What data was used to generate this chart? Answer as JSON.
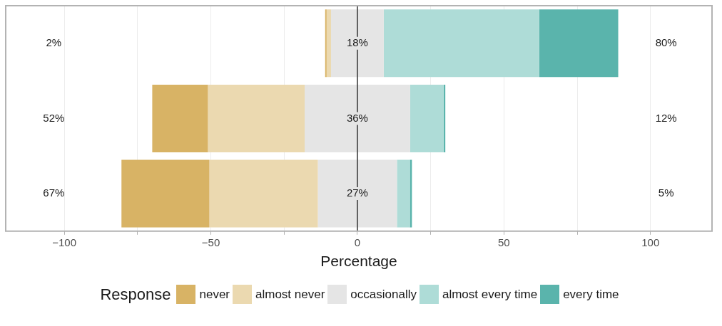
{
  "chart_data": {
    "type": "bar",
    "orientation": "horizontal",
    "categories": [
      null,
      null,
      null
    ],
    "series": [
      {
        "name": "never",
        "color": "#d8b365",
        "base": [
          -11,
          -70,
          -80.5
        ],
        "values": [
          0.5,
          19,
          30
        ]
      },
      {
        "name": "almost never",
        "color": "#ebd9b0",
        "base": [
          -10.5,
          -51,
          -50.5
        ],
        "values": [
          1.5,
          33,
          37
        ]
      },
      {
        "name": "occasionally",
        "color": "#e5e5e5",
        "base": [
          -9,
          -18,
          -13.5
        ],
        "values": [
          18,
          36,
          27
        ],
        "value_labels": [
          "18%",
          "36%",
          "27%"
        ]
      },
      {
        "name": "almost every time",
        "color": "#aedcd7",
        "base": [
          9,
          18,
          13.5
        ],
        "values": [
          53,
          11.4,
          4.4
        ]
      },
      {
        "name": "every time",
        "color": "#5ab4ac",
        "base": [
          62,
          29.4,
          17.9
        ],
        "values": [
          27,
          0.6,
          0.7
        ]
      }
    ],
    "xlim": [
      -120,
      121
    ],
    "xticks": [
      -100,
      {
        "value": -75,
        "label": null
      },
      -50,
      {
        "value": -25,
        "label": null
      },
      0,
      {
        "value": 25,
        "label": null
      },
      50,
      {
        "value": 75,
        "label": null
      },
      100
    ],
    "xlabel": "Percentage",
    "legend_title": "Response",
    "legend": "bottom",
    "grid": "x",
    "tick_labels": "x",
    "ref_lines": [
      {
        "axis": "x",
        "value": 0,
        "color": "#333333"
      }
    ],
    "annotations": [
      "2%",
      "52%",
      "67%",
      "80%",
      "12%",
      "5%"
    ]
  }
}
